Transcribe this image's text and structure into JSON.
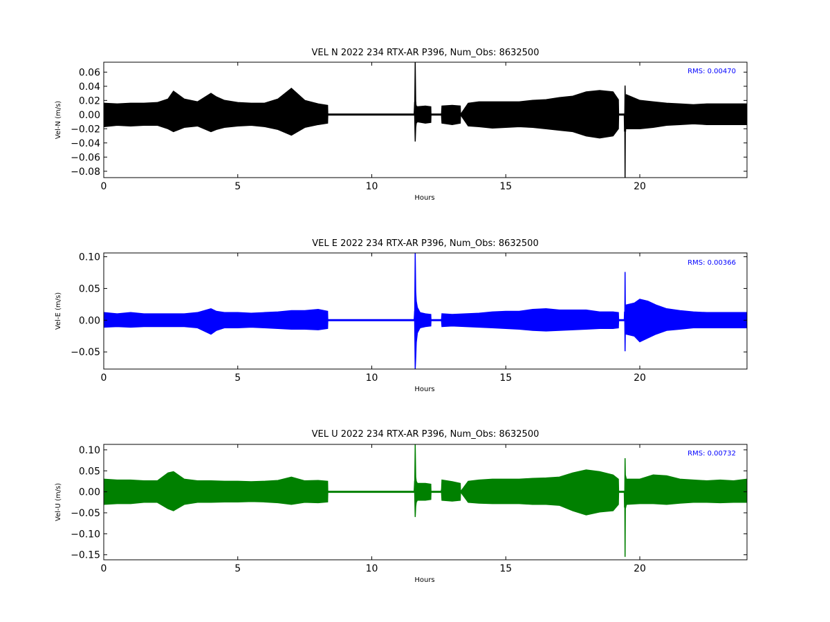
{
  "chart_data": [
    {
      "type": "line",
      "title": "VEL N 2022 234 RTX-AR  P396, Num_Obs: 8632500",
      "xlabel": "Hours",
      "ylabel": "Vel-N (m/s)",
      "xlim": [
        0,
        24
      ],
      "ylim": [
        -0.089,
        0.074
      ],
      "xticks": [
        0,
        5,
        10,
        15,
        20
      ],
      "xtick_labels": [
        "0",
        "5",
        "10",
        "15",
        "20"
      ],
      "yticks": [
        0.06,
        0.04,
        0.02,
        0.0,
        -0.02,
        -0.04,
        -0.06,
        -0.08
      ],
      "ytick_labels": [
        "0.06",
        "0.04",
        "0.02",
        "0.00",
        "−0.02",
        "−0.04",
        "−0.06",
        "−0.08"
      ],
      "grid": false,
      "color": "#000000",
      "annotation": "RMS:  0.00470",
      "annotation_color": "#0000ff",
      "series": [
        {
          "x": [
            0,
            0.5,
            1,
            1.5,
            2,
            2.4,
            2.6,
            3,
            3.5,
            4,
            4.2,
            4.5,
            5,
            5.5,
            6,
            6.5,
            7,
            7.5,
            8,
            8.35,
            8.36,
            11.6,
            11.62,
            11.64,
            11.66,
            11.7,
            12,
            12.2,
            12.21,
            12.6,
            12.62,
            13,
            13.3,
            13.31,
            13.6,
            14,
            14.5,
            15,
            15.5,
            16,
            16.5,
            17,
            17.5,
            18,
            18.5,
            19,
            19.2,
            19.21,
            19.44,
            19.45,
            19.46,
            19.5,
            20,
            20.5,
            21,
            21.5,
            22,
            22.5,
            23,
            23.5,
            24
          ],
          "y_min": [
            -0.017,
            -0.015,
            -0.016,
            -0.015,
            -0.015,
            -0.02,
            -0.024,
            -0.018,
            -0.016,
            -0.024,
            -0.021,
            -0.018,
            -0.016,
            -0.015,
            -0.017,
            -0.021,
            -0.029,
            -0.018,
            -0.014,
            -0.012,
            0.0,
            0.0,
            -0.038,
            -0.018,
            -0.012,
            -0.01,
            -0.012,
            -0.011,
            0.0,
            0.0,
            -0.012,
            -0.014,
            -0.012,
            0.0,
            -0.016,
            -0.017,
            -0.019,
            -0.018,
            -0.017,
            -0.018,
            -0.02,
            -0.022,
            -0.024,
            -0.03,
            -0.033,
            -0.03,
            -0.02,
            0.0,
            0.0,
            -0.089,
            -0.018,
            -0.02,
            -0.02,
            -0.018,
            -0.015,
            -0.014,
            -0.013,
            -0.014,
            -0.014,
            -0.014,
            -0.014
          ],
          "y_max": [
            0.016,
            0.015,
            0.016,
            0.016,
            0.017,
            0.022,
            0.033,
            0.022,
            0.018,
            0.03,
            0.025,
            0.02,
            0.017,
            0.016,
            0.016,
            0.022,
            0.037,
            0.02,
            0.015,
            0.013,
            0.0,
            0.0,
            0.074,
            0.016,
            0.012,
            0.011,
            0.012,
            0.011,
            0.0,
            0.0,
            0.012,
            0.013,
            0.012,
            0.0,
            0.016,
            0.018,
            0.018,
            0.018,
            0.018,
            0.02,
            0.021,
            0.024,
            0.026,
            0.032,
            0.034,
            0.032,
            0.021,
            0.0,
            0.0,
            0.041,
            0.023,
            0.028,
            0.02,
            0.018,
            0.016,
            0.015,
            0.014,
            0.015,
            0.015,
            0.015,
            0.015
          ]
        }
      ]
    },
    {
      "type": "line",
      "title": "VEL E 2022 234 RTX-AR  P396, Num_Obs: 8632500",
      "xlabel": "Hours",
      "ylabel": "Vel-E (m/s)",
      "xlim": [
        0,
        24
      ],
      "ylim": [
        -0.077,
        0.106
      ],
      "xticks": [
        0,
        5,
        10,
        15,
        20
      ],
      "xtick_labels": [
        "0",
        "5",
        "10",
        "15",
        "20"
      ],
      "yticks": [
        0.1,
        0.05,
        0.0,
        -0.05
      ],
      "ytick_labels": [
        "0.10",
        "0.05",
        "0.00",
        "−0.05"
      ],
      "grid": false,
      "color": "#0000ff",
      "annotation": "RMS:  0.00366",
      "annotation_color": "#0000ff",
      "series": [
        {
          "x": [
            0,
            0.5,
            1,
            1.5,
            2,
            2.5,
            3,
            3.5,
            4,
            4.2,
            4.5,
            5,
            5.5,
            6,
            6.5,
            7,
            7.5,
            8,
            8.35,
            8.36,
            11.6,
            11.62,
            11.64,
            11.66,
            11.7,
            11.8,
            12,
            12.2,
            12.21,
            12.6,
            12.62,
            13,
            13.5,
            14,
            14.5,
            15,
            15.5,
            16,
            16.5,
            17,
            17.5,
            18,
            18.5,
            19,
            19.2,
            19.21,
            19.44,
            19.45,
            19.46,
            19.5,
            19.8,
            20,
            20.3,
            20.6,
            21,
            21.5,
            22,
            22.5,
            23,
            23.5,
            24
          ],
          "y_min": [
            -0.011,
            -0.01,
            -0.011,
            -0.01,
            -0.01,
            -0.01,
            -0.01,
            -0.012,
            -0.022,
            -0.016,
            -0.012,
            -0.012,
            -0.011,
            -0.012,
            -0.013,
            -0.014,
            -0.014,
            -0.015,
            -0.013,
            0.0,
            0.0,
            -0.077,
            -0.06,
            -0.035,
            -0.02,
            -0.012,
            -0.01,
            -0.009,
            0.0,
            0.0,
            -0.01,
            -0.009,
            -0.01,
            -0.011,
            -0.012,
            -0.013,
            -0.014,
            -0.016,
            -0.017,
            -0.016,
            -0.015,
            -0.014,
            -0.013,
            -0.013,
            -0.012,
            0.0,
            0.0,
            -0.049,
            -0.015,
            -0.022,
            -0.025,
            -0.034,
            -0.028,
            -0.022,
            -0.016,
            -0.014,
            -0.012,
            -0.012,
            -0.012,
            -0.012,
            -0.012
          ],
          "y_max": [
            0.012,
            0.01,
            0.012,
            0.01,
            0.01,
            0.01,
            0.01,
            0.012,
            0.018,
            0.014,
            0.012,
            0.012,
            0.011,
            0.012,
            0.013,
            0.015,
            0.015,
            0.017,
            0.014,
            0.0,
            0.0,
            0.106,
            0.045,
            0.03,
            0.02,
            0.012,
            0.01,
            0.009,
            0.0,
            0.0,
            0.01,
            0.009,
            0.01,
            0.011,
            0.013,
            0.014,
            0.014,
            0.017,
            0.018,
            0.016,
            0.016,
            0.016,
            0.013,
            0.013,
            0.012,
            0.0,
            0.0,
            0.076,
            0.018,
            0.024,
            0.027,
            0.033,
            0.03,
            0.024,
            0.018,
            0.015,
            0.013,
            0.012,
            0.012,
            0.012,
            0.012
          ]
        }
      ]
    },
    {
      "type": "line",
      "title": "VEL U 2022 234 RTX-AR  P396, Num_Obs: 8632500",
      "xlabel": "Hours",
      "ylabel": "Vel-U (m/s)",
      "xlim": [
        0,
        24
      ],
      "ylim": [
        -0.162,
        0.113
      ],
      "xticks": [
        0,
        5,
        10,
        15,
        20
      ],
      "xtick_labels": [
        "0",
        "5",
        "10",
        "15",
        "20"
      ],
      "yticks": [
        0.1,
        0.05,
        0.0,
        -0.05,
        -0.1,
        -0.15
      ],
      "ytick_labels": [
        "0.10",
        "0.05",
        "0.00",
        "−0.05",
        "−0.10",
        "−0.15"
      ],
      "grid": false,
      "color": "#008000",
      "annotation": "RMS:  0.00732",
      "annotation_color": "#0000ff",
      "series": [
        {
          "x": [
            0,
            0.5,
            1,
            1.5,
            2,
            2.4,
            2.6,
            3,
            3.5,
            4,
            4.5,
            5,
            5.5,
            6,
            6.5,
            7,
            7.5,
            8,
            8.35,
            8.36,
            11.6,
            11.62,
            11.64,
            11.66,
            11.7,
            12,
            12.2,
            12.21,
            12.6,
            12.62,
            13,
            13.3,
            13.31,
            13.6,
            14,
            14.5,
            15,
            15.5,
            16,
            16.5,
            17,
            17.5,
            18,
            18.5,
            19,
            19.2,
            19.21,
            19.44,
            19.45,
            19.46,
            19.5,
            20,
            20.5,
            21,
            21.5,
            22,
            22.5,
            23,
            23.5,
            24
          ],
          "y_min": [
            -0.03,
            -0.028,
            -0.028,
            -0.025,
            -0.025,
            -0.04,
            -0.045,
            -0.03,
            -0.025,
            -0.025,
            -0.024,
            -0.024,
            -0.023,
            -0.024,
            -0.026,
            -0.03,
            -0.025,
            -0.026,
            -0.024,
            0.0,
            0.0,
            -0.06,
            -0.035,
            -0.025,
            -0.02,
            -0.02,
            -0.018,
            0.0,
            0.0,
            -0.02,
            -0.022,
            -0.02,
            0.0,
            -0.025,
            -0.027,
            -0.028,
            -0.028,
            -0.028,
            -0.03,
            -0.03,
            -0.032,
            -0.045,
            -0.055,
            -0.048,
            -0.045,
            -0.03,
            0.0,
            0.0,
            -0.155,
            -0.04,
            -0.03,
            -0.028,
            -0.028,
            -0.03,
            -0.027,
            -0.025,
            -0.025,
            -0.026,
            -0.025,
            -0.025
          ],
          "y_max": [
            0.03,
            0.028,
            0.028,
            0.026,
            0.026,
            0.045,
            0.048,
            0.03,
            0.026,
            0.026,
            0.025,
            0.025,
            0.024,
            0.025,
            0.027,
            0.035,
            0.026,
            0.027,
            0.025,
            0.0,
            0.0,
            0.113,
            0.035,
            0.025,
            0.02,
            0.02,
            0.018,
            0.0,
            0.0,
            0.028,
            0.024,
            0.02,
            0.0,
            0.025,
            0.028,
            0.03,
            0.03,
            0.03,
            0.032,
            0.033,
            0.035,
            0.045,
            0.052,
            0.048,
            0.04,
            0.03,
            0.0,
            0.0,
            0.08,
            0.04,
            0.03,
            0.03,
            0.04,
            0.038,
            0.03,
            0.028,
            0.026,
            0.028,
            0.026,
            0.03
          ]
        }
      ]
    }
  ]
}
